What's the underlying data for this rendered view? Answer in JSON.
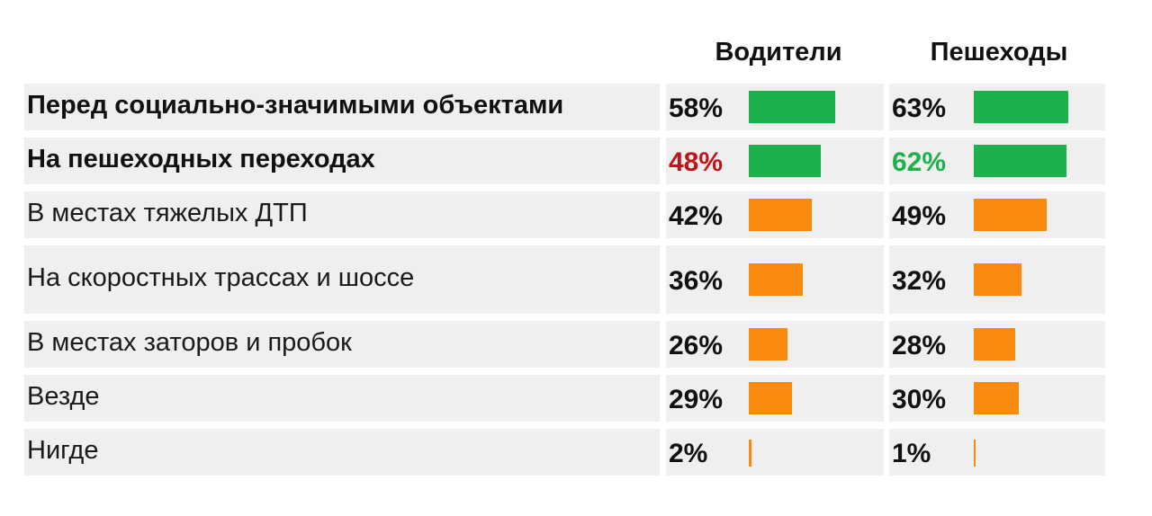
{
  "chart_data": {
    "type": "bar",
    "orientation": "horizontal",
    "series": [
      {
        "name": "Водители",
        "values": [
          58,
          48,
          42,
          36,
          26,
          29,
          2
        ]
      },
      {
        "name": "Пешеходы",
        "values": [
          63,
          62,
          49,
          32,
          28,
          30,
          1
        ]
      }
    ],
    "categories": [
      "Перед социально-значимыми объектами",
      "На пешеходных переходах",
      "В местах тяжелых ДТП",
      "На скоростных трассах и шоссе",
      "В местах заторов и пробок",
      "Везде",
      "Нигде"
    ],
    "value_labels": [
      [
        "58%",
        "63%"
      ],
      [
        "48%",
        "62%"
      ],
      [
        "42%",
        "49%"
      ],
      [
        "36%",
        "32%"
      ],
      [
        "26%",
        "28%"
      ],
      [
        "29%",
        "30%"
      ],
      [
        "2%",
        "1%"
      ]
    ],
    "bold_categories": [
      true,
      true,
      false,
      false,
      false,
      false,
      false
    ],
    "bar_colors": [
      "#1db04b",
      "#1db04b",
      "#f88a0f",
      "#f88a0f",
      "#f88a0f",
      "#f88a0f",
      "#f88a0f"
    ],
    "label_colors": [
      [
        "#111111",
        "#111111"
      ],
      [
        "#c0141c",
        "#1db04b"
      ],
      [
        "#111111",
        "#111111"
      ],
      [
        "#111111",
        "#111111"
      ],
      [
        "#111111",
        "#111111"
      ],
      [
        "#111111",
        "#111111"
      ],
      [
        "#111111",
        "#111111"
      ]
    ],
    "xlim": [
      0,
      100
    ],
    "grid": false,
    "legend": "top"
  }
}
